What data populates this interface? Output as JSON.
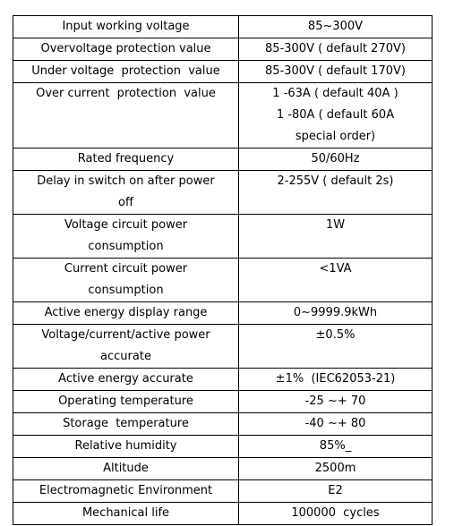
{
  "table": {
    "rows": [
      [
        [
          "Input working voltage"
        ],
        [
          "85~300V"
        ]
      ],
      [
        [
          "Overvoltage protection value"
        ],
        [
          "85-300V ( default 270V)"
        ]
      ],
      [
        [
          "Under voltage  protection  value"
        ],
        [
          "85-300V ( default 170V)"
        ]
      ],
      [
        [
          "Over current  protection  value"
        ],
        [
          "1 -63A ( default 40A )",
          "1 -80A ( default 60A",
          "special order)"
        ]
      ],
      [
        [
          "Rated frequency"
        ],
        [
          "50/60Hz"
        ]
      ],
      [
        [
          "Delay in switch on after power",
          "off"
        ],
        [
          "2-255V ( default 2s)"
        ]
      ],
      [
        [
          "Voltage circuit power",
          "consumption"
        ],
        [
          "1W"
        ]
      ],
      [
        [
          "Current circuit power",
          "consumption"
        ],
        [
          "<1VA"
        ]
      ],
      [
        [
          "Active energy display range"
        ],
        [
          "0~9999.9kWh"
        ]
      ],
      [
        [
          "Voltage/current/active power",
          "accurate"
        ],
        [
          "±0.5%"
        ]
      ],
      [
        [
          "Active energy accurate"
        ],
        [
          "±1%  (IEC62053-21)"
        ]
      ],
      [
        [
          "Operating temperature"
        ],
        [
          "-25 ~+ 70"
        ]
      ],
      [
        [
          "Storage  temperature"
        ],
        [
          "-40 ~+ 80"
        ]
      ],
      [
        [
          "Relative humidity"
        ],
        [
          "85%_"
        ]
      ],
      [
        [
          "Altitude"
        ],
        [
          "2500m"
        ]
      ],
      [
        [
          "Electromagnetic Environment"
        ],
        [
          "E2"
        ]
      ],
      [
        [
          "Mechanical life"
        ],
        [
          "100000  cycles"
        ]
      ]
    ]
  }
}
